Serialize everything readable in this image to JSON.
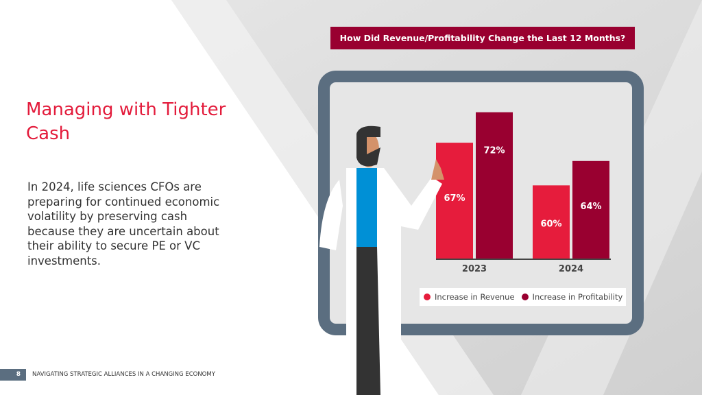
{
  "slide": {
    "title": "Managing with Tighter Cash",
    "body": "In 2024, life sciences CFOs are preparing for continued economic volatility by preserving cash because they are uncertain about their ability to secure PE or VC investments.",
    "page_number": "8",
    "footer": "NAVIGATING STRATEGIC ALLIANCES IN A CHANGING ECONOMY"
  },
  "colors": {
    "accent": "#e31b3b",
    "dark_red": "#990030",
    "board": "#5b6e80"
  },
  "chart_data": {
    "type": "bar",
    "title": "How Did Revenue/Profitability Change the Last 12 Months?",
    "categories": [
      "2023",
      "2024"
    ],
    "series": [
      {
        "name": "Increase in Revenue",
        "values": [
          67,
          60
        ],
        "labels": [
          "67%",
          "60%"
        ],
        "color": "#e61c3c"
      },
      {
        "name": "Increase in Profitability",
        "values": [
          72,
          64
        ],
        "labels": [
          "72%",
          "64%"
        ],
        "color": "#990030"
      }
    ],
    "ylim": [
      48,
      75
    ],
    "grid": false,
    "legend": "bottom"
  }
}
